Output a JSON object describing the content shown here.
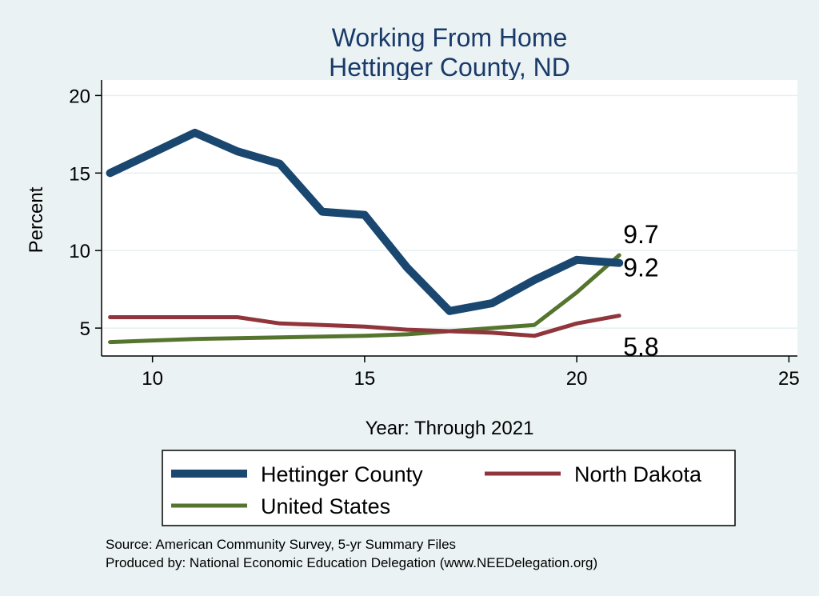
{
  "chart_data": {
    "type": "line",
    "title": "Working From Home",
    "subtitle": "Hettinger County, ND",
    "xlabel": "Year: Through 2021",
    "ylabel": "Percent",
    "xlim": [
      8.8,
      25.2
    ],
    "ylim": [
      3.2,
      21
    ],
    "xticks": [
      10,
      15,
      20,
      25
    ],
    "yticks": [
      5,
      10,
      15,
      20
    ],
    "grid": true,
    "legend_position": "bottom",
    "series": [
      {
        "name": "Hettinger County",
        "color": "#1a476f",
        "x": [
          9,
          10,
          11,
          12,
          13,
          14,
          15,
          16,
          17,
          18,
          19,
          20,
          21
        ],
        "values": [
          15.0,
          16.3,
          17.6,
          16.4,
          15.6,
          12.5,
          12.3,
          8.9,
          6.1,
          6.6,
          8.1,
          9.4,
          9.2
        ],
        "end_label": "9.2"
      },
      {
        "name": "North Dakota",
        "color": "#90353b",
        "x": [
          9,
          10,
          11,
          12,
          13,
          14,
          15,
          16,
          17,
          18,
          19,
          20,
          21
        ],
        "values": [
          5.7,
          5.7,
          5.7,
          5.7,
          5.3,
          5.2,
          5.1,
          4.9,
          4.8,
          4.7,
          4.5,
          5.3,
          5.8
        ],
        "end_label": "5.8"
      },
      {
        "name": "United States",
        "color": "#55752f",
        "x": [
          9,
          10,
          11,
          12,
          13,
          14,
          15,
          16,
          17,
          18,
          19,
          20,
          21
        ],
        "values": [
          4.1,
          4.2,
          4.3,
          4.35,
          4.4,
          4.45,
          4.5,
          4.6,
          4.8,
          5.0,
          5.2,
          7.3,
          9.7
        ],
        "end_label": "9.7"
      }
    ],
    "notes": [
      "Source: American Community Survey, 5-yr Summary Files",
      "Produced by: National Economic Education Delegation (www.NEEDelegation.org)"
    ]
  }
}
